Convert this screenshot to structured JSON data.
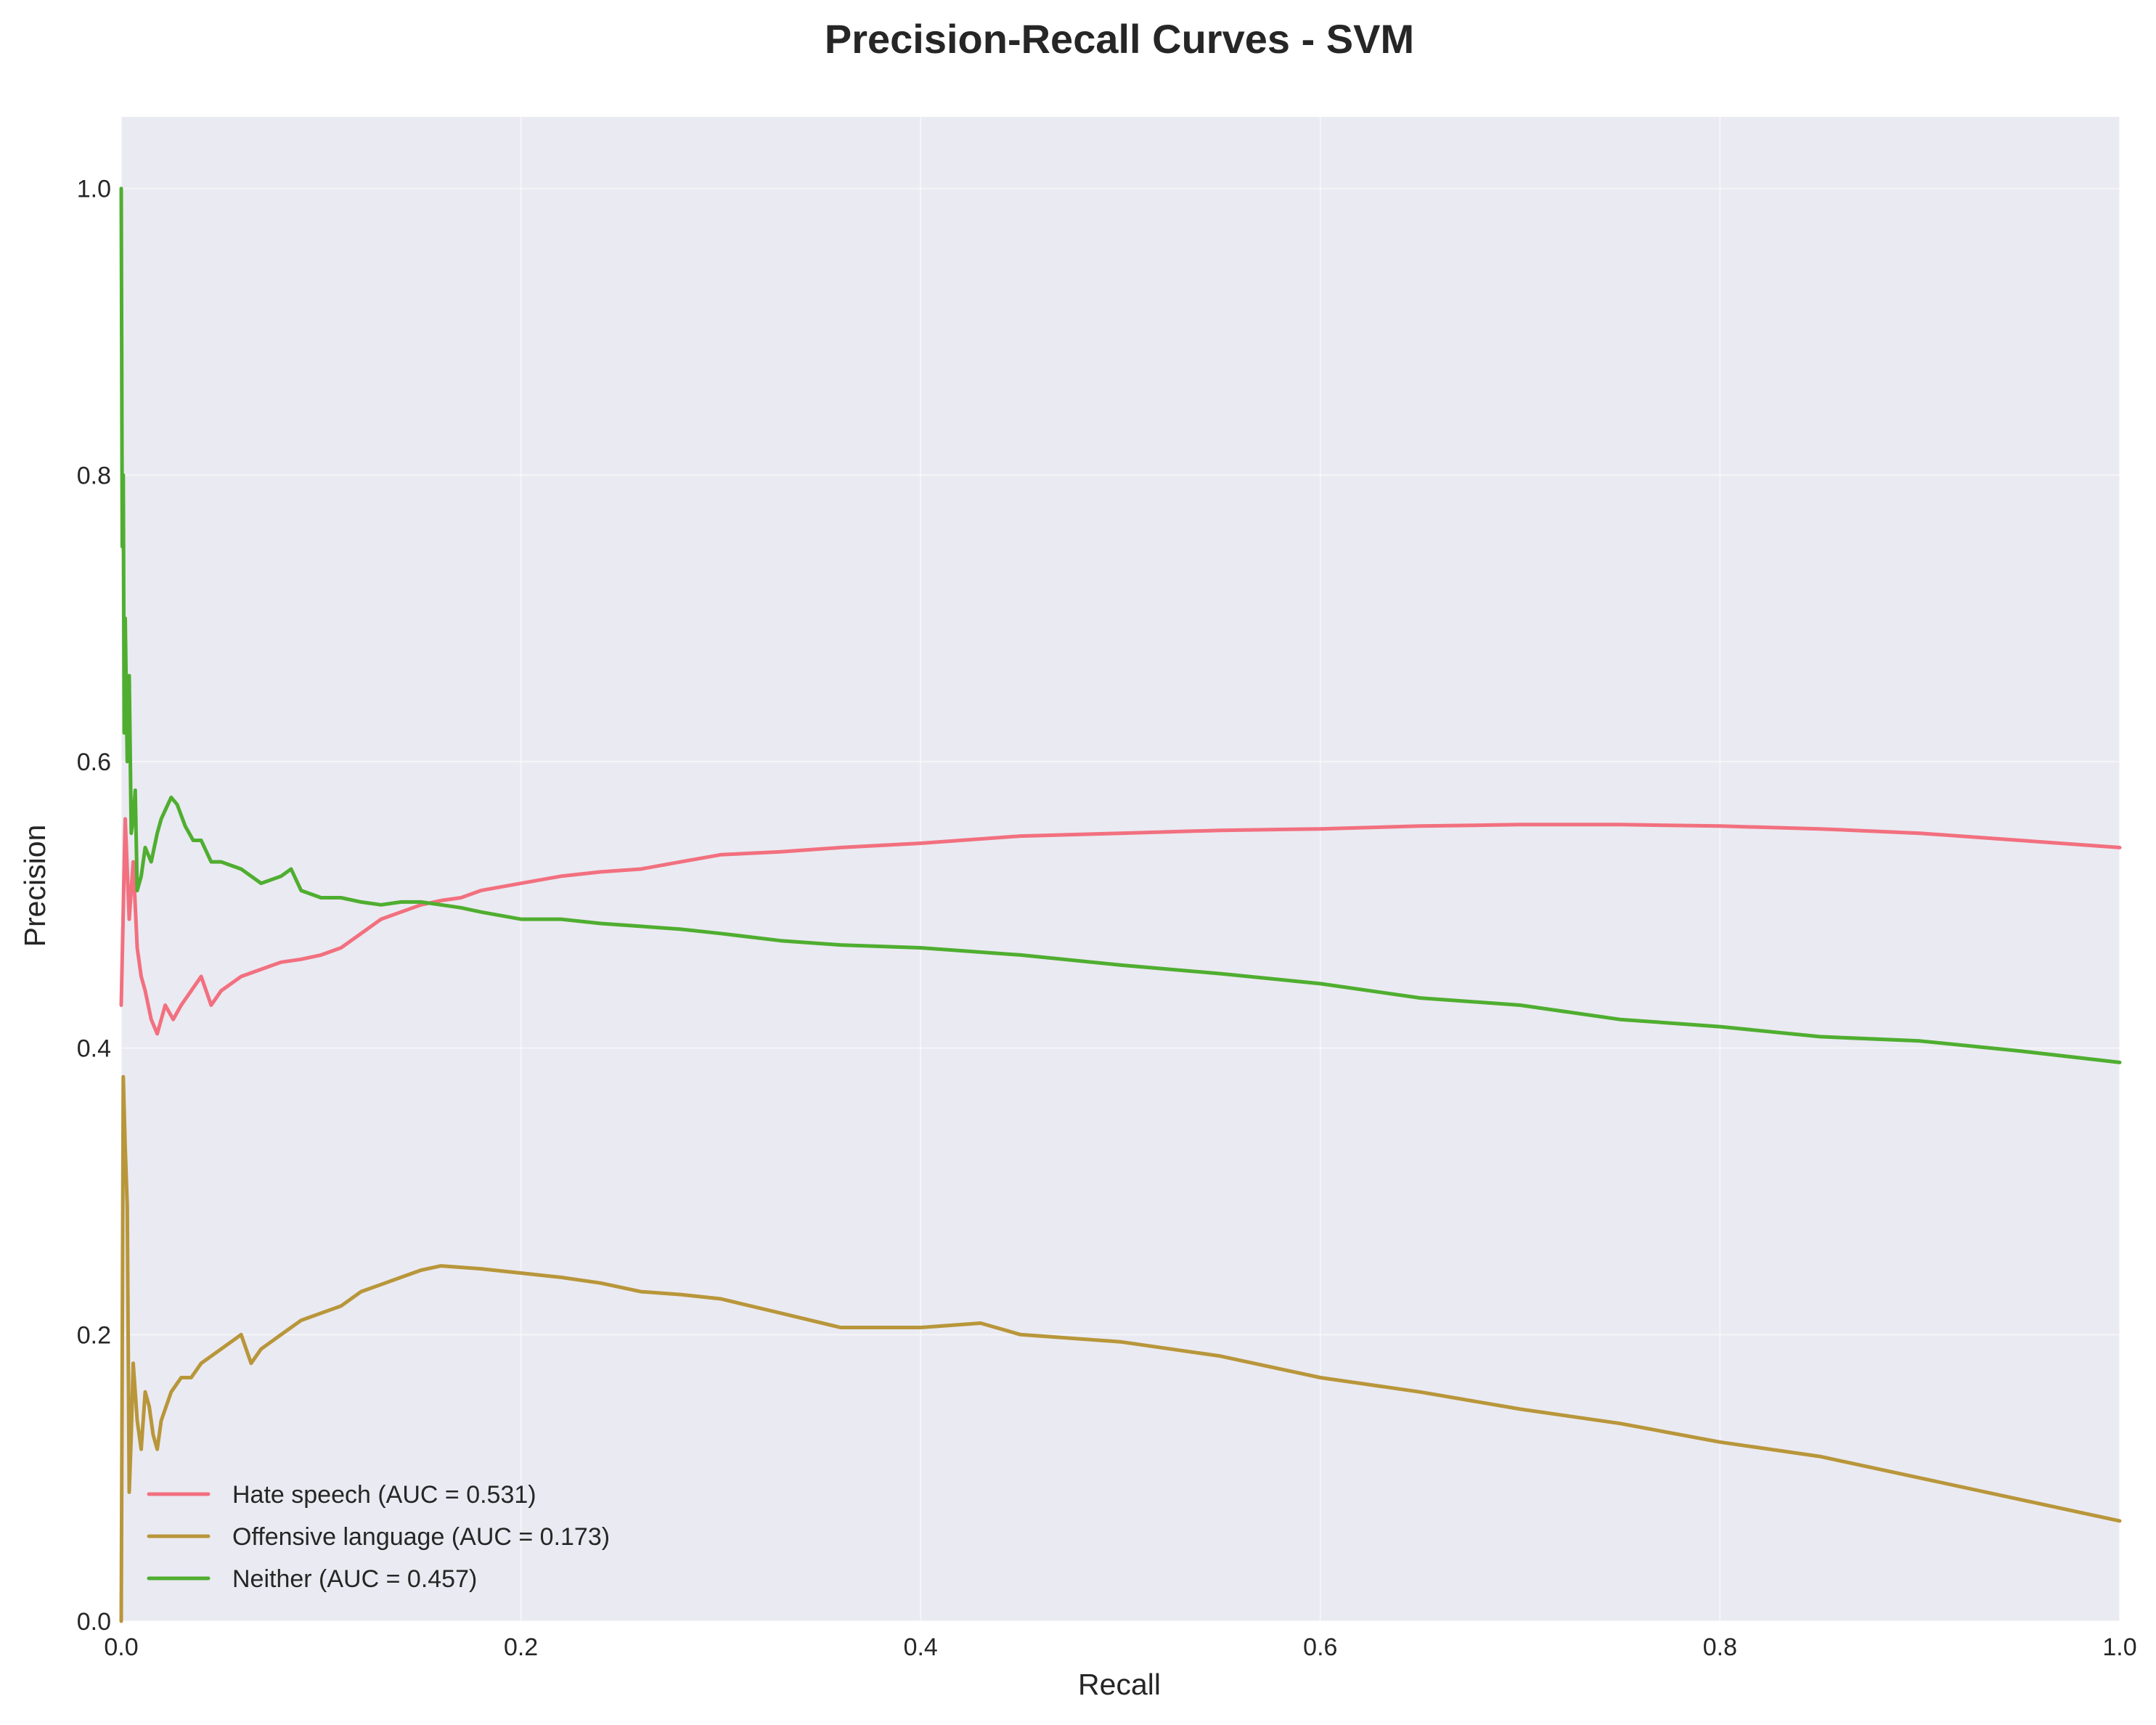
{
  "chart_data": {
    "type": "line",
    "title": "Precision-Recall Curves - SVM",
    "xlabel": "Recall",
    "ylabel": "Precision",
    "xlim": [
      0.0,
      1.0
    ],
    "ylim": [
      0.0,
      1.05
    ],
    "xticks": [
      0.0,
      0.2,
      0.4,
      0.6,
      0.8,
      1.0
    ],
    "yticks": [
      0.0,
      0.2,
      0.4,
      0.6,
      0.8,
      1.0
    ],
    "xtick_labels": [
      "0.0",
      "0.2",
      "0.4",
      "0.6",
      "0.8",
      "1.0"
    ],
    "ytick_labels": [
      "0.0",
      "0.2",
      "0.4",
      "0.6",
      "0.8",
      "1.0"
    ],
    "grid": true,
    "background": "#eaeaf2",
    "legend_position": "lower-left",
    "series": [
      {
        "name": "Hate speech (AUC = 0.531)",
        "color": "#f2707f",
        "x": [
          0.0,
          0.002,
          0.004,
          0.006,
          0.008,
          0.01,
          0.012,
          0.015,
          0.018,
          0.022,
          0.026,
          0.03,
          0.035,
          0.04,
          0.045,
          0.05,
          0.06,
          0.07,
          0.08,
          0.09,
          0.1,
          0.11,
          0.12,
          0.13,
          0.14,
          0.15,
          0.16,
          0.17,
          0.18,
          0.2,
          0.22,
          0.24,
          0.26,
          0.28,
          0.3,
          0.33,
          0.36,
          0.4,
          0.45,
          0.5,
          0.55,
          0.6,
          0.65,
          0.7,
          0.75,
          0.8,
          0.85,
          0.9,
          0.95,
          1.0
        ],
        "y": [
          0.43,
          0.56,
          0.49,
          0.53,
          0.47,
          0.45,
          0.44,
          0.42,
          0.41,
          0.43,
          0.42,
          0.43,
          0.44,
          0.45,
          0.43,
          0.44,
          0.45,
          0.455,
          0.46,
          0.462,
          0.465,
          0.47,
          0.48,
          0.49,
          0.495,
          0.5,
          0.503,
          0.505,
          0.51,
          0.515,
          0.52,
          0.523,
          0.525,
          0.53,
          0.535,
          0.537,
          0.54,
          0.543,
          0.548,
          0.55,
          0.552,
          0.553,
          0.555,
          0.556,
          0.556,
          0.555,
          0.553,
          0.55,
          0.545,
          0.54
        ]
      },
      {
        "name": "Offensive language (AUC = 0.173)",
        "color": "#b8963a",
        "x": [
          0.0,
          0.001,
          0.002,
          0.003,
          0.004,
          0.005,
          0.006,
          0.008,
          0.01,
          0.012,
          0.014,
          0.016,
          0.018,
          0.02,
          0.025,
          0.03,
          0.035,
          0.04,
          0.05,
          0.06,
          0.065,
          0.07,
          0.08,
          0.09,
          0.1,
          0.11,
          0.12,
          0.13,
          0.14,
          0.15,
          0.16,
          0.17,
          0.18,
          0.2,
          0.22,
          0.24,
          0.26,
          0.28,
          0.3,
          0.33,
          0.36,
          0.4,
          0.43,
          0.45,
          0.5,
          0.55,
          0.6,
          0.65,
          0.7,
          0.75,
          0.8,
          0.85,
          0.9,
          0.95,
          1.0
        ],
        "y": [
          0.0,
          0.38,
          0.33,
          0.29,
          0.09,
          0.13,
          0.18,
          0.14,
          0.12,
          0.16,
          0.15,
          0.13,
          0.12,
          0.14,
          0.16,
          0.17,
          0.17,
          0.18,
          0.19,
          0.2,
          0.18,
          0.19,
          0.2,
          0.21,
          0.215,
          0.22,
          0.23,
          0.235,
          0.24,
          0.245,
          0.248,
          0.247,
          0.246,
          0.243,
          0.24,
          0.236,
          0.23,
          0.228,
          0.225,
          0.215,
          0.205,
          0.205,
          0.208,
          0.2,
          0.195,
          0.185,
          0.17,
          0.16,
          0.148,
          0.138,
          0.125,
          0.115,
          0.1,
          0.085,
          0.07
        ]
      },
      {
        "name": "Neither (AUC = 0.457)",
        "color": "#4fae30",
        "x": [
          0.0,
          0.0005,
          0.001,
          0.0015,
          0.002,
          0.003,
          0.004,
          0.005,
          0.006,
          0.007,
          0.008,
          0.01,
          0.012,
          0.015,
          0.018,
          0.02,
          0.025,
          0.028,
          0.032,
          0.036,
          0.04,
          0.045,
          0.05,
          0.06,
          0.07,
          0.08,
          0.085,
          0.09,
          0.1,
          0.11,
          0.12,
          0.13,
          0.14,
          0.15,
          0.16,
          0.17,
          0.18,
          0.2,
          0.22,
          0.24,
          0.26,
          0.28,
          0.3,
          0.33,
          0.36,
          0.4,
          0.45,
          0.5,
          0.55,
          0.6,
          0.65,
          0.7,
          0.75,
          0.8,
          0.85,
          0.9,
          0.95,
          1.0
        ],
        "y": [
          1.0,
          0.75,
          0.8,
          0.62,
          0.7,
          0.6,
          0.66,
          0.55,
          0.56,
          0.58,
          0.51,
          0.52,
          0.54,
          0.53,
          0.55,
          0.56,
          0.575,
          0.57,
          0.555,
          0.545,
          0.545,
          0.53,
          0.53,
          0.525,
          0.515,
          0.52,
          0.525,
          0.51,
          0.505,
          0.505,
          0.502,
          0.5,
          0.502,
          0.502,
          0.5,
          0.498,
          0.495,
          0.49,
          0.49,
          0.487,
          0.485,
          0.483,
          0.48,
          0.475,
          0.472,
          0.47,
          0.465,
          0.458,
          0.452,
          0.445,
          0.435,
          0.43,
          0.42,
          0.415,
          0.408,
          0.405,
          0.398,
          0.39
        ]
      }
    ]
  }
}
